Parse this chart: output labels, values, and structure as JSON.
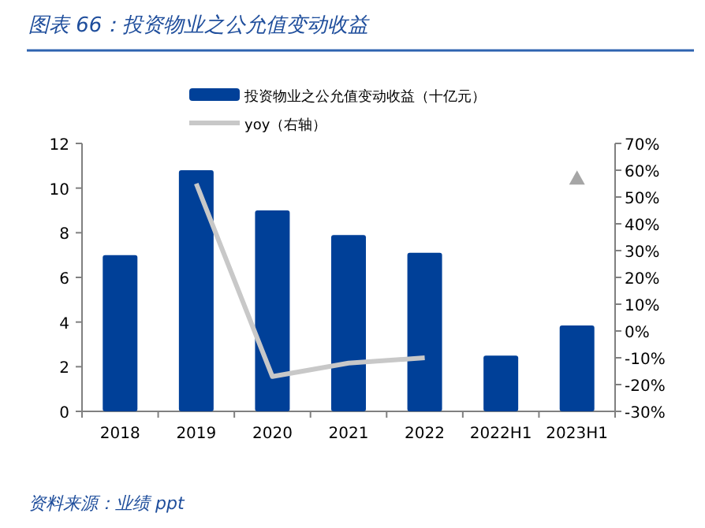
{
  "chart_data": {
    "type": "bar",
    "title": "图表 66：投资物业之公允值变动收益",
    "categories": [
      "2018",
      "2019",
      "2020",
      "2021",
      "2022",
      "2022H1",
      "2023H1"
    ],
    "series": [
      {
        "name": "投资物业之公允值变动收益（十亿元）",
        "color": "#004098",
        "values": [
          7.0,
          10.8,
          9.0,
          7.9,
          7.1,
          2.5,
          3.85
        ]
      },
      {
        "name": "yoy（右轴）",
        "type": "line",
        "axis": "y2",
        "color": "#c8c8c8",
        "values": [
          null,
          55,
          -17,
          -12,
          -10,
          null,
          null
        ]
      },
      {
        "type": "scatter",
        "axis": "y2",
        "marker": "triangle",
        "color": "#a6a6a6",
        "values": [
          null,
          null,
          null,
          null,
          null,
          null,
          57
        ]
      }
    ],
    "ylim": [
      0,
      12
    ],
    "yticks": [
      0,
      2,
      4,
      6,
      8,
      10,
      12
    ],
    "y2lim": [
      -30,
      70
    ],
    "y2ticks": [
      {
        "value": -30,
        "label": "-30%"
      },
      {
        "value": -20,
        "label": "-20%"
      },
      {
        "value": -10,
        "label": "-10%"
      },
      {
        "value": 0,
        "label": "0%"
      },
      {
        "value": 10,
        "label": "10%"
      },
      {
        "value": 20,
        "label": "20%"
      },
      {
        "value": 30,
        "label": "30%"
      },
      {
        "value": 40,
        "label": "40%"
      },
      {
        "value": 50,
        "label": "50%"
      },
      {
        "value": 60,
        "label": "60%"
      },
      {
        "value": 70,
        "label": "70%"
      }
    ],
    "legend": "top",
    "annotations": [
      "资料来源：业绩 ppt"
    ]
  }
}
